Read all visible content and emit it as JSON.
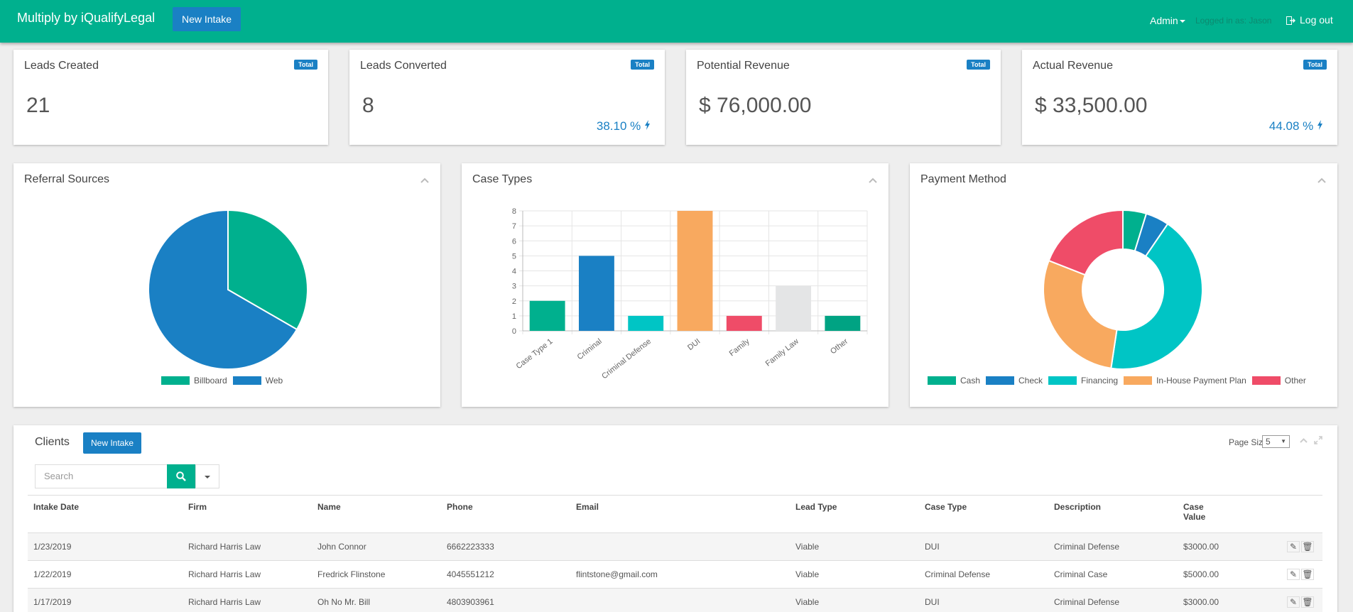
{
  "nav": {
    "brand": "Multiply by iQualifyLegal",
    "new_intake": "New Intake",
    "admin": "Admin",
    "logged_in": "Logged in as: Jason",
    "logout": "Log out"
  },
  "stats": [
    {
      "title": "Leads Created",
      "badge": "Total",
      "value": "21",
      "pct": ""
    },
    {
      "title": "Leads Converted",
      "badge": "Total",
      "value": "8",
      "pct": "38.10 %"
    },
    {
      "title": "Potential Revenue",
      "badge": "Total",
      "value": "$ 76,000.00",
      "pct": ""
    },
    {
      "title": "Actual Revenue",
      "badge": "Total",
      "value": "$ 33,500.00",
      "pct": "44.08 %"
    }
  ],
  "panels": {
    "referral": "Referral Sources",
    "case_types": "Case Types",
    "payment": "Payment Method"
  },
  "colors": {
    "brand": "#00b08e",
    "primary": "#1a80c4",
    "teal": "#00b08e",
    "blue": "#1a80c4",
    "cyan": "#00c5c5",
    "orange": "#f8a95f",
    "red": "#ef4c68",
    "grey": "#e4e5e6",
    "green2": "#00a383"
  },
  "chart_data": [
    {
      "type": "pie",
      "categories": [
        "Billboard",
        "Web"
      ],
      "values": [
        7,
        14
      ],
      "colors": [
        "#00b08e",
        "#1a80c4"
      ],
      "legend": "bottom"
    },
    {
      "type": "bar",
      "categories": [
        "Case Type 1",
        "Criminal",
        "Criminal Defense",
        "DUI",
        "Family",
        "Family Law",
        "Other"
      ],
      "values": [
        2,
        5,
        1,
        8,
        1,
        3,
        1
      ],
      "colors": [
        "#00b08e",
        "#1a80c4",
        "#00c5c5",
        "#f8a95f",
        "#ef4c68",
        "#e4e5e6",
        "#00a383"
      ],
      "yticks": [
        "0",
        "1",
        "2",
        "3",
        "4",
        "5",
        "6",
        "7",
        "8"
      ],
      "ylim": [
        0,
        8
      ],
      "grid": true
    },
    {
      "type": "pie",
      "subtype": "doughnut",
      "categories": [
        "Cash",
        "Check",
        "Financing",
        "In-House Payment Plan",
        "Other"
      ],
      "values": [
        1,
        1,
        9,
        6,
        4
      ],
      "colors": [
        "#00b08e",
        "#1a80c4",
        "#00c5c5",
        "#f8a95f",
        "#ef4c68"
      ],
      "legend": "bottom"
    }
  ],
  "clients": {
    "title": "Clients",
    "new_intake": "New Intake",
    "page_size_label": "Page Size:",
    "page_size_value": "5",
    "search_placeholder": "Search",
    "columns": [
      "Intake Date",
      "Firm",
      "Name",
      "Phone",
      "Email",
      "Lead Type",
      "Case Type",
      "Description",
      "Case Value"
    ],
    "rows": [
      [
        "1/23/2019",
        "Richard Harris Law",
        "John Connor",
        "6662223333",
        "",
        "Viable",
        "DUI",
        "Criminal Defense",
        "$3000.00"
      ],
      [
        "1/22/2019",
        "Richard Harris Law",
        "Fredrick Flinstone",
        "4045551212",
        "flintstone@gmail.com",
        "Viable",
        "Criminal Defense",
        "Criminal Case",
        "$5000.00"
      ],
      [
        "1/17/2019",
        "Richard Harris Law",
        "Oh No Mr. Bill",
        "4803903961",
        "",
        "Viable",
        "DUI",
        "Criminal Defense",
        "$3000.00"
      ]
    ]
  }
}
